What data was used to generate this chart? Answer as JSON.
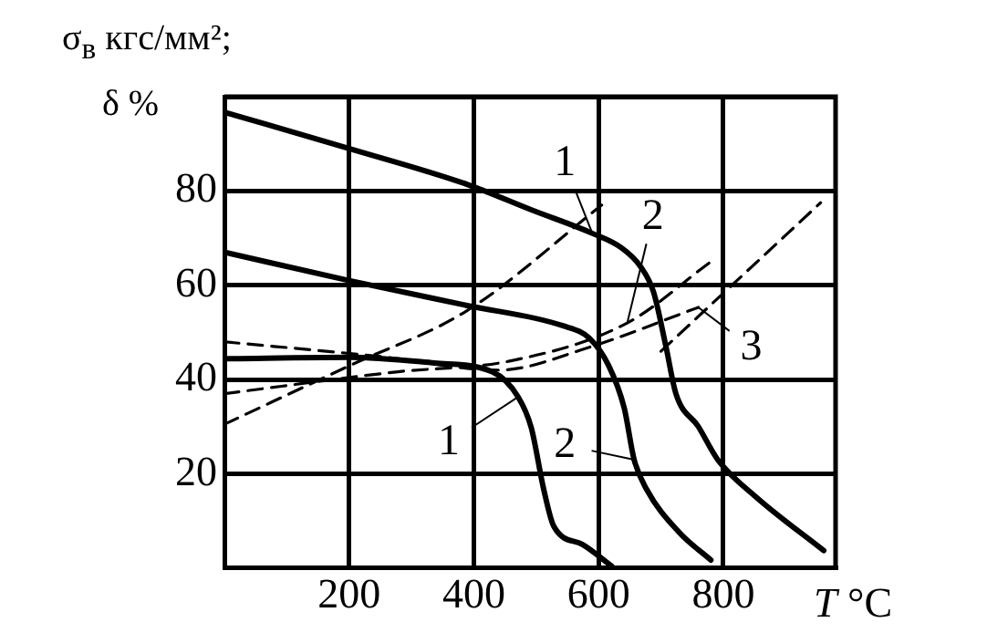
{
  "chart_data": {
    "type": "line",
    "ylabel": "σ$_{в}$ кгс/мм²;\nδ %",
    "xlabel": "T °C",
    "xlim": [
      0,
      980
    ],
    "ylim": [
      0,
      100
    ],
    "xticks": [
      {
        "value": 0,
        "label": null
      },
      200,
      400,
      600,
      800
    ],
    "yticks": [
      {
        "value": 0,
        "label": null
      },
      20,
      40,
      60,
      80,
      {
        "value": 100,
        "label": null
      }
    ],
    "grid": true,
    "legend": false,
    "marker": "none",
    "series": [
      {
        "color": "#000000",
        "line_style": "solid",
        "x": [
          0,
          200,
          389,
          492,
          590,
          636,
          667,
          688,
          708,
          724,
          760,
          791,
          853,
          961
        ],
        "values": [
          96.7,
          89,
          81.4,
          76,
          71,
          68,
          64,
          58.6,
          47,
          37,
          30,
          23,
          15,
          3.7
        ]
      },
      {
        "color": "#000000",
        "line_style": "solid",
        "x": [
          0,
          200,
          389,
          543,
          585,
          616,
          641,
          657,
          677,
          729,
          780
        ],
        "values": [
          67,
          61,
          55.7,
          51.4,
          48.8,
          43,
          34,
          23,
          16.7,
          7.6,
          1.7
        ]
      },
      {
        "color": "#000000",
        "line_style": "solid",
        "x": [
          0,
          200,
          337,
          430,
          471,
          492,
          512,
          528,
          574,
          621
        ],
        "values": [
          44.4,
          44.7,
          43.5,
          41.6,
          36.3,
          29.8,
          16.7,
          8.9,
          5,
          0.4
        ]
      },
      {
        "color": "#000000",
        "line_style": "dashed",
        "x": [
          0,
          200,
          389,
          605
        ],
        "values": [
          30.5,
          42.9,
          54.6,
          77
        ]
      },
      {
        "color": "#000000",
        "line_style": "dashed",
        "x": [
          0,
          275,
          461,
          646,
          780
        ],
        "values": [
          37,
          41.6,
          44,
          52,
          65
        ]
      },
      {
        "color": "#000000",
        "line_style": "dashed",
        "x": [
          0,
          255,
          440,
          584,
          760
        ],
        "values": [
          48,
          44.8,
          42,
          46.8,
          55.3
        ]
      },
      {
        "color": "#000000",
        "line_style": "dashed",
        "x": [
          700,
          956
        ],
        "values": [
          46,
          77.5
        ]
      }
    ],
    "annotations": [
      {
        "text": "1",
        "x": 590,
        "y": 71
      },
      {
        "text": "2",
        "x": 646,
        "y": 52
      },
      {
        "text": "3",
        "x": 760,
        "y": 55.3
      },
      {
        "text": "1",
        "x": 471,
        "y": 36.3
      },
      {
        "text": "2",
        "x": 657,
        "y": 23
      }
    ]
  }
}
